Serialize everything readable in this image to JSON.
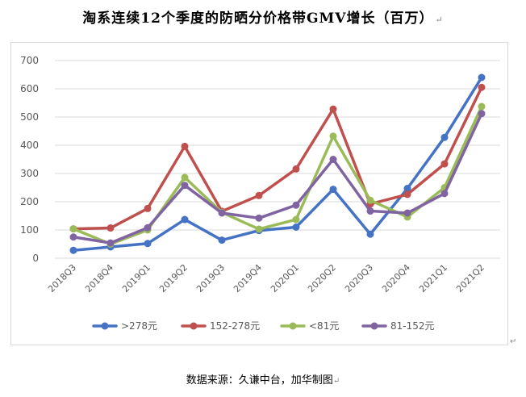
{
  "title": "淘系连续12个季度的防晒分价格带GMV增长（百万）",
  "title_mark": "↵",
  "source": "数据来源：久谦中台，加华制图",
  "source_mark": "↵",
  "end_mark": "↵",
  "colors": {
    ">278元": "#4472c4",
    "152-278元": "#c0504d",
    "<81元": "#9bbb59",
    "81-152元": "#8064a2",
    "grid": "#d9d9d9",
    "axis_text": "#595959"
  },
  "chart_data": {
    "type": "line",
    "title": "淘系连续12个季度的防晒分价格带GMV增长（百万）",
    "xlabel": "",
    "ylabel": "",
    "ylim": [
      0,
      700
    ],
    "yticks": [
      0,
      100,
      200,
      300,
      400,
      500,
      600,
      700
    ],
    "grid": true,
    "legend_position": "bottom",
    "categories": [
      "2018Q3",
      "2018Q4",
      "2019Q1",
      "2019Q2",
      "2019Q3",
      "2019Q4",
      "2020Q1",
      "2020Q2",
      "2020Q3",
      "2020Q4",
      "2021Q1",
      "2021Q2"
    ],
    "series": [
      {
        "name": ">278元",
        "values": [
          28,
          40,
          52,
          137,
          64,
          98,
          110,
          244,
          85,
          247,
          428,
          640
        ]
      },
      {
        "name": "152-278元",
        "values": [
          104,
          107,
          176,
          396,
          166,
          222,
          316,
          528,
          192,
          226,
          334,
          605
        ]
      },
      {
        "name": "<81元",
        "values": [
          104,
          50,
          100,
          286,
          162,
          103,
          137,
          432,
          205,
          146,
          250,
          537
        ]
      },
      {
        "name": "81-152元",
        "values": [
          75,
          54,
          108,
          258,
          160,
          142,
          188,
          350,
          167,
          160,
          229,
          512
        ]
      }
    ]
  }
}
